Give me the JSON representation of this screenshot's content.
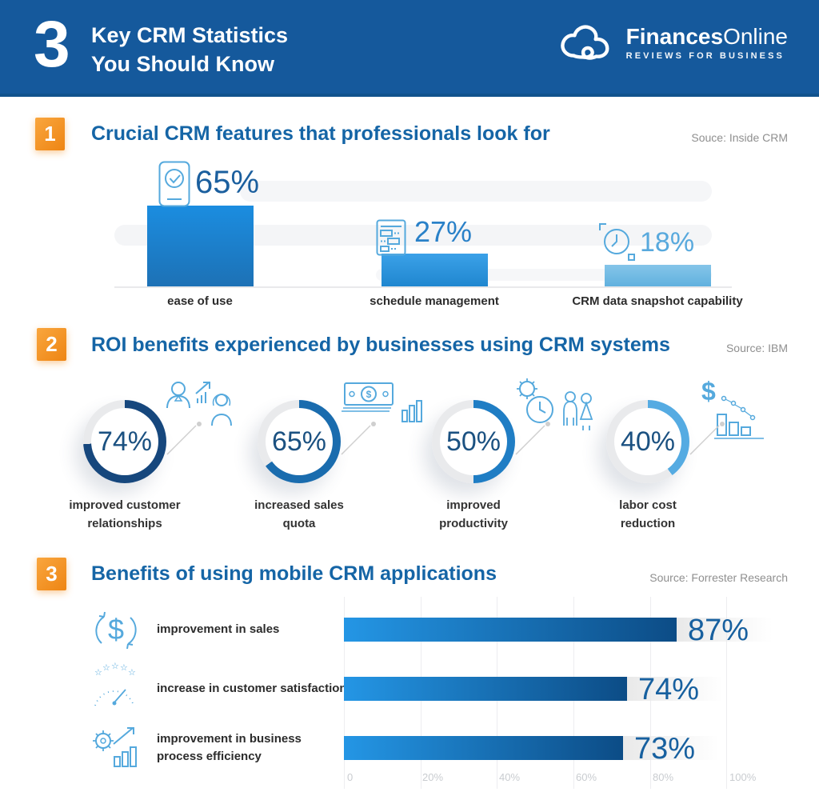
{
  "header": {
    "count": "3",
    "title_line1": "Key CRM Statistics",
    "title_line2": "You Should Know",
    "bg_color": "#15599c",
    "brand": {
      "logo_icon": "cloud-logo-icon",
      "name_bold": "Finances",
      "name_light": "Online",
      "tagline": "REVIEWS FOR BUSINESS"
    }
  },
  "sections": [
    {
      "number": "1",
      "title": "Crucial CRM features that professionals look for",
      "source": "Souce: Inside CRM",
      "bars": [
        {
          "label": "ease of use",
          "pct": "65%",
          "icon": "phone-check-icon",
          "pct_color": "#1b5f9e",
          "bar_color": "#1b8de0"
        },
        {
          "label": "schedule management",
          "pct": "27%",
          "icon": "schedule-document-icon",
          "pct_color": "#2a81c8",
          "bar_color": "#2f97e0"
        },
        {
          "label": "CRM data snapshot capability",
          "pct": "18%",
          "icon": "clock-snapshot-icon",
          "pct_color": "#58a9dd",
          "bar_color": "#72bce4"
        }
      ]
    },
    {
      "number": "2",
      "title": "ROI benefits experienced by businesses using CRM systems",
      "source": "Source: IBM",
      "track_color": "#e9eaec",
      "donuts": [
        {
          "pct": "74%",
          "arc_color": "#16477d",
          "label_line1": "improved customer",
          "label_line2": "relationships",
          "icon": "people-growth-icon"
        },
        {
          "pct": "65%",
          "arc_color": "#1a6cae",
          "label_line1": "increased sales",
          "label_line2": "quota",
          "icon": "banknotes-chart-icon"
        },
        {
          "pct": "50%",
          "arc_color": "#1f7dc4",
          "label_line1": "improved",
          "label_line2": "productivity",
          "icon": "gear-clock-people-icon"
        },
        {
          "pct": "40%",
          "arc_color": "#55abe2",
          "label_line1": "labor cost",
          "label_line2": "reduction",
          "icon": "dollar-decline-icon"
        }
      ]
    },
    {
      "number": "3",
      "title": "Benefits of using mobile CRM applications",
      "source": "Source: Forrester Research",
      "rows": [
        {
          "label_line1": "improvement in sales",
          "label_line2": "",
          "pct": "87%",
          "icon": "dollar-cycle-icon"
        },
        {
          "label_line1": "increase in customer satisfaction",
          "label_line2": "",
          "pct": "74%",
          "icon": "gauge-stars-icon"
        },
        {
          "label_line1": "improvement in business",
          "label_line2": "process efficiency",
          "pct": "73%",
          "icon": "gear-growth-icon"
        }
      ]
    }
  ],
  "chart_data": [
    {
      "type": "bar",
      "title": "Crucial CRM features that professionals look for",
      "source": "Souce: Inside CRM",
      "categories": [
        "ease of use",
        "schedule management",
        "CRM data snapshot capability"
      ],
      "values": [
        65,
        27,
        18
      ],
      "unit": "%",
      "ylim": [
        0,
        100
      ],
      "grid": false,
      "bar_colors": [
        "#1b8de0",
        "#2f97e0",
        "#72bce4"
      ]
    },
    {
      "type": "pie",
      "subtype": "donut-multiples",
      "title": "ROI benefits experienced by businesses using CRM systems",
      "source": "Source: IBM",
      "categories": [
        "improved customer relationships",
        "increased sales quota",
        "improved productivity",
        "labor cost reduction"
      ],
      "values": [
        74,
        65,
        50,
        40
      ],
      "unit": "%",
      "arc_colors": [
        "#16477d",
        "#1a6cae",
        "#1f7dc4",
        "#55abe2"
      ],
      "track_color": "#e9eaec"
    },
    {
      "type": "bar",
      "subtype": "horizontal",
      "title": "Benefits of using mobile CRM applications",
      "source": "Source: Forrester Research",
      "categories": [
        "improvement in sales",
        "increase in customer satisfaction",
        "improvement in business process efficiency"
      ],
      "values": [
        87,
        74,
        73
      ],
      "unit": "%",
      "xlim": [
        0,
        100
      ],
      "x_ticks": [
        "0",
        "20%",
        "40%",
        "60%",
        "80%",
        "100%"
      ],
      "grid": true,
      "bar_gradient": [
        "#2496e5",
        "#0c4c86"
      ]
    }
  ]
}
